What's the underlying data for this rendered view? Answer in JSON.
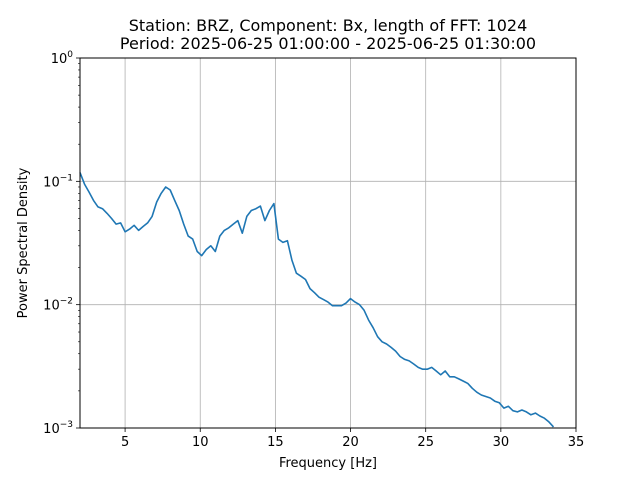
{
  "chart_data": {
    "type": "line",
    "title_line1": "Station: BRZ, Component: Bx, length of FFT: 1024",
    "title_line2": "Period: 2025-06-25 01:00:00 - 2025-06-25 01:30:00",
    "xlabel": "Frequency [Hz]",
    "ylabel": "Power Spectral Density",
    "xlim": [
      2,
      35
    ],
    "ylim": [
      0.001,
      1
    ],
    "yscale": "log",
    "grid": true,
    "x_ticks": [
      {
        "value": 5,
        "label": "5"
      },
      {
        "value": 10,
        "label": "10"
      },
      {
        "value": 15,
        "label": "15"
      },
      {
        "value": 20,
        "label": "20"
      },
      {
        "value": 25,
        "label": "25"
      },
      {
        "value": 30,
        "label": "30"
      },
      {
        "value": 35,
        "label": "35"
      }
    ],
    "y_ticks": [
      {
        "value": 0.001,
        "base": "10",
        "exp": "−3"
      },
      {
        "value": 0.01,
        "base": "10",
        "exp": "−2"
      },
      {
        "value": 0.1,
        "base": "10",
        "exp": "−1"
      },
      {
        "value": 1,
        "base": "10",
        "exp": "0"
      }
    ],
    "series": [
      {
        "color": "#1f77b4",
        "x": [
          2.0,
          2.3,
          2.6,
          2.9,
          3.2,
          3.5,
          3.8,
          4.1,
          4.4,
          4.7,
          5.0,
          5.3,
          5.6,
          5.9,
          6.2,
          6.5,
          6.8,
          7.1,
          7.4,
          7.7,
          8.0,
          8.3,
          8.6,
          8.9,
          9.2,
          9.5,
          9.8,
          10.1,
          10.4,
          10.7,
          11.0,
          11.3,
          11.6,
          11.9,
          12.2,
          12.5,
          12.8,
          13.1,
          13.4,
          13.7,
          14.0,
          14.3,
          14.6,
          14.9,
          15.2,
          15.5,
          15.8,
          16.1,
          16.4,
          16.7,
          17.0,
          17.3,
          17.6,
          17.9,
          18.2,
          18.5,
          18.8,
          19.1,
          19.4,
          19.7,
          20.0,
          20.3,
          20.6,
          20.9,
          21.2,
          21.5,
          21.8,
          22.1,
          22.4,
          22.7,
          23.0,
          23.3,
          23.6,
          23.9,
          24.2,
          24.5,
          24.8,
          25.1,
          25.4,
          25.7,
          26.0,
          26.3,
          26.6,
          26.9,
          27.2,
          27.5,
          27.8,
          28.1,
          28.4,
          28.7,
          29.0,
          29.3,
          29.6,
          29.9,
          30.2,
          30.5,
          30.8,
          31.1,
          31.4,
          31.7,
          32.0,
          32.3,
          32.6,
          32.9,
          33.2,
          33.5
        ],
        "y": [
          0.118,
          0.095,
          0.082,
          0.07,
          0.062,
          0.06,
          0.055,
          0.05,
          0.045,
          0.046,
          0.039,
          0.041,
          0.044,
          0.04,
          0.043,
          0.046,
          0.052,
          0.068,
          0.08,
          0.09,
          0.085,
          0.07,
          0.058,
          0.045,
          0.036,
          0.034,
          0.027,
          0.025,
          0.028,
          0.03,
          0.027,
          0.036,
          0.04,
          0.042,
          0.045,
          0.048,
          0.038,
          0.052,
          0.058,
          0.06,
          0.063,
          0.048,
          0.058,
          0.066,
          0.034,
          0.032,
          0.033,
          0.023,
          0.018,
          0.017,
          0.016,
          0.0135,
          0.0125,
          0.0115,
          0.011,
          0.0105,
          0.0098,
          0.0098,
          0.0098,
          0.0103,
          0.0112,
          0.0105,
          0.01,
          0.009,
          0.0075,
          0.0065,
          0.0055,
          0.005,
          0.0048,
          0.0045,
          0.0042,
          0.0038,
          0.0036,
          0.0035,
          0.0033,
          0.0031,
          0.003,
          0.003,
          0.0031,
          0.0029,
          0.0027,
          0.0029,
          0.0026,
          0.0026,
          0.0025,
          0.0024,
          0.0023,
          0.0021,
          0.00195,
          0.00185,
          0.0018,
          0.00175,
          0.00165,
          0.0016,
          0.00145,
          0.0015,
          0.00138,
          0.00135,
          0.0014,
          0.00135,
          0.00128,
          0.00132,
          0.00125,
          0.0012,
          0.00112,
          0.00102
        ]
      }
    ]
  }
}
